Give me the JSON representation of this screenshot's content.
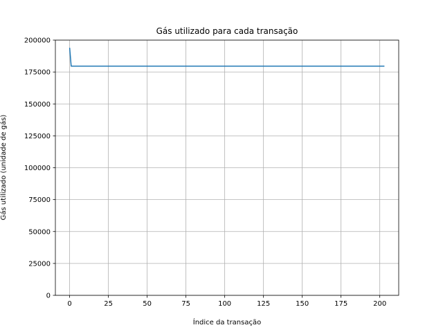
{
  "chart_data": {
    "type": "line",
    "title": "Gás utilizado para cada transação",
    "xlabel": "Índice da transação",
    "ylabel": "Gás utilizado (unidade de gás)",
    "xlim": [
      -9.2,
      212.2
    ],
    "ylim": [
      0,
      200000
    ],
    "xticks": [
      0,
      25,
      50,
      75,
      100,
      125,
      150,
      175,
      200
    ],
    "yticks": [
      0,
      25000,
      50000,
      75000,
      100000,
      125000,
      150000,
      175000,
      200000
    ],
    "grid": true,
    "series": [
      {
        "color": "#1f77b4",
        "x": [
          0,
          1,
          2,
          25,
          50,
          75,
          100,
          125,
          150,
          175,
          200,
          203
        ],
        "y": [
          194000,
          179600,
          179600,
          179600,
          179600,
          179600,
          179600,
          179600,
          179600,
          179600,
          179600,
          179600
        ]
      }
    ]
  }
}
